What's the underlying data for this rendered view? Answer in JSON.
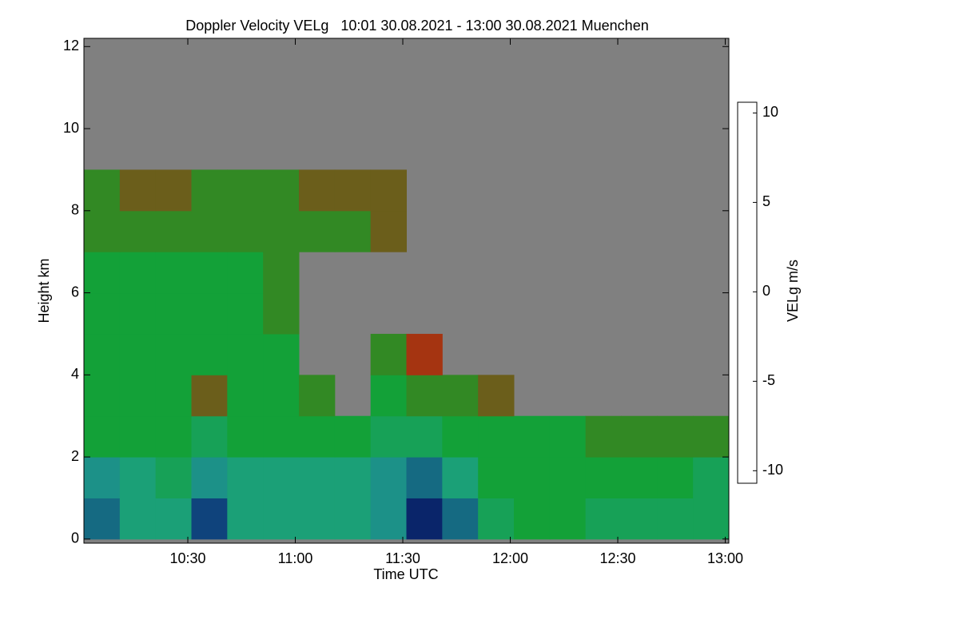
{
  "chart_data": {
    "type": "heatmap",
    "title": "Doppler Velocity VELg   10:01 30.08.2021 - 13:00 30.08.2021 Muenchen",
    "x_label": "Time UTC",
    "y_label": "Height km",
    "colorbar_label": "VELg m/s",
    "x_bins": [
      601,
      611,
      621,
      631,
      641,
      651,
      661,
      671,
      681,
      691,
      701,
      711,
      721,
      731,
      741,
      751,
      761,
      771,
      781
    ],
    "y_bins": [
      0,
      1,
      2,
      3,
      4,
      5,
      6,
      7,
      8,
      9,
      10,
      11,
      12
    ],
    "values": [
      [
        -6,
        -4,
        -4,
        -7,
        -4,
        -4,
        -4,
        -4,
        -5,
        -8,
        -6,
        -3,
        -2,
        -2,
        -3,
        -3,
        -3,
        -3
      ],
      [
        -5,
        -4,
        -3,
        -5,
        -4,
        -4,
        -4,
        -4,
        -5,
        -6,
        -4,
        -2,
        -2,
        -2,
        -2,
        -2,
        -2,
        -3
      ],
      [
        -2,
        -2,
        -2,
        -3,
        -2,
        -2,
        -2,
        -2,
        -3,
        -3,
        -2,
        -2,
        -2,
        -2,
        -1,
        -1,
        -1,
        -1
      ],
      [
        -2,
        -2,
        -2,
        0,
        -2,
        -2,
        -1,
        null,
        -2,
        -1,
        -1,
        0,
        null,
        null,
        null,
        null,
        null,
        null
      ],
      [
        -2,
        -2,
        -2,
        -2,
        -2,
        -2,
        null,
        null,
        -1,
        1,
        null,
        null,
        null,
        null,
        null,
        null,
        null,
        null
      ],
      [
        -2,
        -2,
        -2,
        -2,
        -2,
        -1,
        null,
        null,
        null,
        null,
        null,
        null,
        null,
        null,
        null,
        null,
        null,
        null
      ],
      [
        -2,
        -2,
        -2,
        -2,
        -2,
        -1,
        null,
        null,
        null,
        null,
        null,
        null,
        null,
        null,
        null,
        null,
        null,
        null
      ],
      [
        -1,
        -1,
        -1,
        -1,
        -1,
        -1,
        -1,
        -1,
        0,
        null,
        null,
        null,
        null,
        null,
        null,
        null,
        null,
        null
      ],
      [
        -1,
        0,
        0,
        -1,
        -1,
        -1,
        0,
        0,
        0,
        null,
        null,
        null,
        null,
        null,
        null,
        null,
        null,
        null
      ],
      [
        null,
        null,
        null,
        null,
        null,
        null,
        null,
        null,
        null,
        null,
        null,
        null,
        null,
        null,
        null,
        null,
        null,
        null
      ],
      [
        null,
        null,
        null,
        null,
        null,
        null,
        null,
        null,
        null,
        null,
        null,
        null,
        null,
        null,
        null,
        null,
        null,
        null
      ],
      [
        null,
        null,
        null,
        null,
        null,
        null,
        null,
        null,
        null,
        null,
        null,
        null,
        null,
        null,
        null,
        null,
        null,
        null
      ]
    ],
    "xlim": [
      601,
      781
    ],
    "xticks": [
      {
        "value": 630,
        "label": "10:30"
      },
      {
        "value": 660,
        "label": "11:00"
      },
      {
        "value": 690,
        "label": "11:30"
      },
      {
        "value": 720,
        "label": "12:00"
      },
      {
        "value": 750,
        "label": "12:30"
      },
      {
        "value": 780,
        "label": "13:00"
      }
    ],
    "ylim": [
      -0.1,
      12.2
    ],
    "yticks": [
      0,
      2,
      4,
      6,
      8,
      10,
      12
    ],
    "clim": [
      -10.7,
      10.6
    ],
    "cticks": [
      -10,
      -5,
      0,
      5,
      10
    ],
    "colorscale": [
      "#000000",
      "#0b2a78",
      "#1ea08a",
      "#11a12a",
      "#c0200c",
      "#d06010",
      "#e0a000",
      "#ffff00"
    ],
    "missing_color": "#808080"
  }
}
